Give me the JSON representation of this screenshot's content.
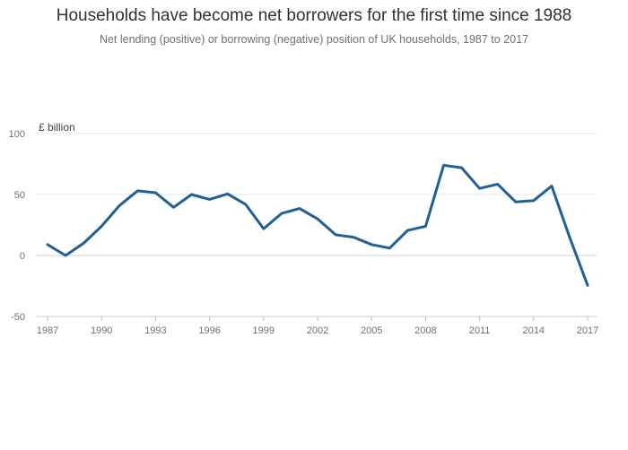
{
  "chart_data": {
    "type": "line",
    "title": "Households have become net borrowers for the first time since 1988",
    "subtitle": "Net lending (positive) or borrowing (negative) position of UK households, 1987 to 2017",
    "ylabel": "£ billion",
    "xlabel": "",
    "ylim": [
      -50,
      100
    ],
    "xlim": [
      1987,
      2017
    ],
    "y_ticks": [
      -50,
      0,
      50,
      100
    ],
    "x_ticks": [
      1987,
      1990,
      1993,
      1996,
      1999,
      2002,
      2005,
      2008,
      2011,
      2014,
      2017
    ],
    "grid": "horizontal",
    "series": [
      {
        "color": "#206095",
        "x": [
          1987,
          1988,
          1989,
          1990,
          1991,
          1992,
          1993,
          1994,
          1995,
          1996,
          1997,
          1998,
          1999,
          2000,
          2001,
          2002,
          2003,
          2004,
          2005,
          2006,
          2007,
          2008,
          2009,
          2010,
          2011,
          2012,
          2013,
          2014,
          2015,
          2016,
          2017
        ],
        "values": [
          9,
          0,
          10,
          24,
          41,
          53,
          51.5,
          39.5,
          50,
          46,
          50.5,
          42,
          22,
          34.5,
          38.5,
          30,
          17,
          15,
          9,
          6,
          20.5,
          24,
          74,
          72,
          55,
          58.5,
          44,
          45,
          57,
          15,
          -24.5
        ]
      }
    ]
  }
}
